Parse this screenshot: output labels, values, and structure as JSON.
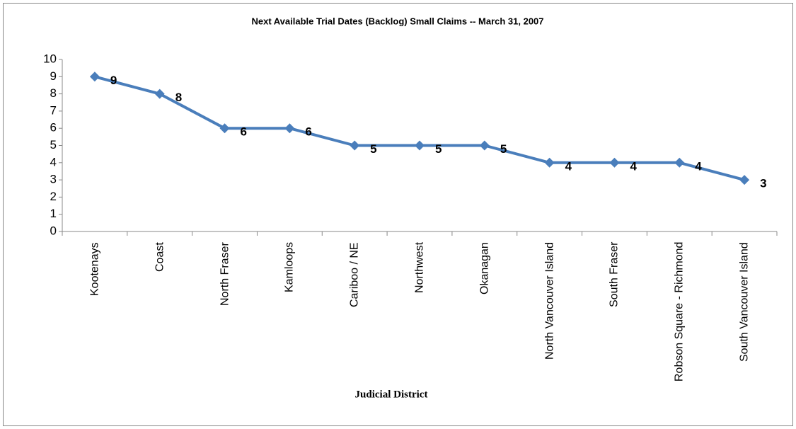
{
  "chart_data": {
    "type": "line",
    "title": "Next Available Trial Dates (Backlog) Small Claims -- March 31, 2007",
    "x_label": "Judicial District",
    "categories": [
      "Kootenays",
      "Coast",
      "North Fraser",
      "Kamloops",
      "Cariboo / NE",
      "Northwest",
      "Okanagan",
      "North Vancouver Island",
      "South Fraser",
      "Robson Square - Richmond",
      "South Vancouver Island"
    ],
    "values": [
      9,
      8,
      6,
      6,
      5,
      5,
      5,
      4,
      4,
      4,
      3
    ],
    "color": "#4a7ebb",
    "ylim": [
      0,
      10
    ],
    "yticks": [
      0,
      1,
      2,
      3,
      4,
      5,
      6,
      7,
      8,
      9,
      10
    ],
    "grid": false
  }
}
